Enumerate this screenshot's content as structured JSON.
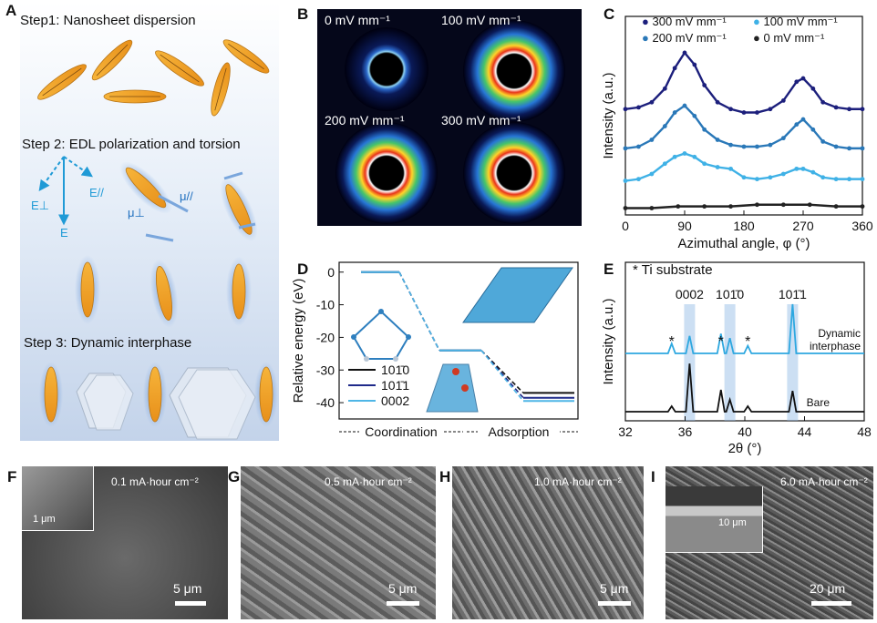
{
  "panels": {
    "A": {
      "letter": "A",
      "step1": "Step1:  Nanosheet dispersion",
      "step2": "Step 2:  EDL polarization and torsion",
      "step3": "Step 3: Dynamic interphase",
      "field_labels": {
        "e_parallel": "E//",
        "e_perp": "E⊥",
        "e": "E",
        "mu_parallel": "μ//",
        "mu_perp": "μ⊥"
      },
      "colors": {
        "sheet": "#f2a22a",
        "background_top": "#ffffff",
        "background_bottom": "#c9d8ee",
        "field": "#1f9ad6"
      }
    },
    "B": {
      "letter": "B",
      "labels": [
        "0 mV mm⁻¹",
        "100 mV mm⁻¹",
        "200 mV mm⁻¹",
        "300 mV mm⁻¹"
      ]
    },
    "C": {
      "letter": "C",
      "legend": [
        "300 mV mm⁻¹",
        "100 mV mm⁻¹",
        "200 mV mm⁻¹",
        "0 mV mm⁻¹"
      ]
    },
    "D": {
      "letter": "D",
      "legend": [
        "101̄0",
        "101̄1",
        "0002"
      ],
      "region_labels": [
        "Coordination",
        "Adsorption"
      ]
    },
    "E": {
      "letter": "E",
      "star_note": "* Ti  substrate",
      "peak_labels": [
        "0002",
        "101̄0",
        "101̄1"
      ],
      "trace_labels": [
        "Dynamic",
        "interphase",
        "Bare"
      ],
      "star": "*"
    },
    "F": {
      "letter": "F",
      "condition": "0.1 mA·hour cm⁻²",
      "scale": "5 μm",
      "inset_scale": "1 μm"
    },
    "G": {
      "letter": "G",
      "condition": "0.5 mA·hour cm⁻²",
      "scale": "5 μm"
    },
    "H": {
      "letter": "H",
      "condition": "1.0 mA·hour cm⁻²",
      "scale": "5 μm"
    },
    "I": {
      "letter": "I",
      "condition": "6.0 mA·hour cm⁻²",
      "scale": "20 μm",
      "inset_scale": "10 μm"
    }
  },
  "chart_data": [
    {
      "panel": "C",
      "type": "scatter",
      "xlabel": "Azimuthal angle, φ (°)",
      "ylabel": "Intensity (a.u.)",
      "xlim": [
        0,
        360
      ],
      "xticks": [
        0,
        90,
        180,
        270,
        360
      ],
      "series": [
        {
          "name": "300 mV mm⁻¹",
          "color": "#1c1f7c",
          "x": [
            0,
            20,
            40,
            60,
            75,
            90,
            105,
            120,
            140,
            160,
            180,
            200,
            220,
            240,
            260,
            270,
            285,
            300,
            320,
            340,
            360
          ],
          "y": [
            0.62,
            0.63,
            0.66,
            0.74,
            0.86,
            0.95,
            0.88,
            0.76,
            0.66,
            0.62,
            0.6,
            0.6,
            0.62,
            0.67,
            0.78,
            0.8,
            0.74,
            0.66,
            0.63,
            0.62,
            0.62
          ]
        },
        {
          "name": "100 mV mm⁻¹",
          "color": "#2a78b8",
          "x": [
            0,
            20,
            40,
            60,
            75,
            90,
            105,
            120,
            140,
            160,
            180,
            200,
            220,
            240,
            260,
            270,
            285,
            300,
            320,
            340,
            360
          ],
          "y": [
            0.39,
            0.4,
            0.44,
            0.52,
            0.6,
            0.64,
            0.58,
            0.5,
            0.44,
            0.41,
            0.4,
            0.4,
            0.41,
            0.45,
            0.53,
            0.56,
            0.5,
            0.43,
            0.4,
            0.39,
            0.39
          ]
        },
        {
          "name": "200 mV mm⁻¹",
          "color": "#3fb1e6",
          "x": [
            0,
            20,
            40,
            60,
            75,
            90,
            105,
            120,
            140,
            160,
            180,
            200,
            220,
            240,
            260,
            270,
            285,
            300,
            320,
            340,
            360
          ],
          "y": [
            0.2,
            0.21,
            0.24,
            0.3,
            0.34,
            0.36,
            0.34,
            0.3,
            0.28,
            0.27,
            0.22,
            0.21,
            0.22,
            0.24,
            0.27,
            0.27,
            0.25,
            0.22,
            0.21,
            0.21,
            0.21
          ]
        },
        {
          "name": "0 mV mm⁻¹",
          "color": "#222222",
          "x": [
            0,
            40,
            80,
            120,
            160,
            200,
            240,
            280,
            320,
            360
          ],
          "y": [
            0.04,
            0.04,
            0.05,
            0.05,
            0.05,
            0.06,
            0.06,
            0.06,
            0.05,
            0.05
          ]
        }
      ]
    },
    {
      "panel": "D",
      "type": "line",
      "xlabel": "",
      "ylabel": "Relative energy  (eV)",
      "ylim": [
        -45,
        3
      ],
      "yticks": [
        0,
        -10,
        -20,
        -30,
        -40
      ],
      "steps": [
        "initial",
        "coordination",
        "adsorption"
      ],
      "series": [
        {
          "name": "101̄0",
          "color": "#111111",
          "values": [
            0,
            -24,
            -37
          ]
        },
        {
          "name": "101̄1",
          "color": "#1f2a8a",
          "values": [
            0,
            -24,
            -38.5
          ]
        },
        {
          "name": "0002",
          "color": "#4fb6e6",
          "values": [
            0,
            -24,
            -39.5
          ]
        }
      ]
    },
    {
      "panel": "E",
      "type": "line",
      "xlabel": "2θ (°)",
      "ylabel": "Intensity (a.u.)",
      "xlim": [
        32,
        48
      ],
      "xticks": [
        32,
        36,
        40,
        44,
        48
      ],
      "series": [
        {
          "name": "Dynamic interphase",
          "color": "#2ea8e0",
          "peaks": [
            [
              35.1,
              0.18
            ],
            [
              36.3,
              0.32
            ],
            [
              38.4,
              0.36
            ],
            [
              39.0,
              0.28
            ],
            [
              40.2,
              0.14
            ],
            [
              43.2,
              0.9
            ]
          ]
        },
        {
          "name": "Bare",
          "color": "#111111",
          "peaks": [
            [
              35.1,
              0.1
            ],
            [
              36.3,
              0.88
            ],
            [
              38.4,
              0.4
            ],
            [
              39.0,
              0.22
            ],
            [
              40.2,
              0.1
            ],
            [
              43.2,
              0.38
            ]
          ]
        }
      ],
      "highlight_bands": [
        36.3,
        39.0,
        43.2
      ]
    }
  ]
}
